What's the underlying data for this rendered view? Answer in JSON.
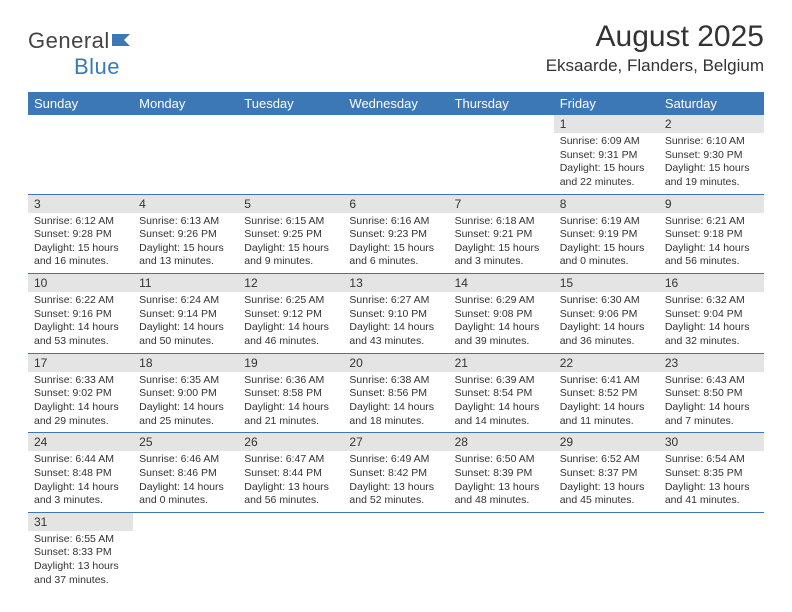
{
  "logo": {
    "text1": "General",
    "text2": "Blue"
  },
  "title": "August 2025",
  "location": "Eksaarde, Flanders, Belgium",
  "colors": {
    "header_bg": "#3b78b5",
    "header_text": "#ffffff",
    "daynum_bg": "#e4e4e4",
    "rule": "#3b78b5",
    "text": "#333333"
  },
  "daysOfWeek": [
    "Sunday",
    "Monday",
    "Tuesday",
    "Wednesday",
    "Thursday",
    "Friday",
    "Saturday"
  ],
  "firstDayOffset": 5,
  "days": [
    {
      "n": 1,
      "sr": "6:09 AM",
      "ss": "9:31 PM",
      "dl": "15 hours and 22 minutes."
    },
    {
      "n": 2,
      "sr": "6:10 AM",
      "ss": "9:30 PM",
      "dl": "15 hours and 19 minutes."
    },
    {
      "n": 3,
      "sr": "6:12 AM",
      "ss": "9:28 PM",
      "dl": "15 hours and 16 minutes."
    },
    {
      "n": 4,
      "sr": "6:13 AM",
      "ss": "9:26 PM",
      "dl": "15 hours and 13 minutes."
    },
    {
      "n": 5,
      "sr": "6:15 AM",
      "ss": "9:25 PM",
      "dl": "15 hours and 9 minutes."
    },
    {
      "n": 6,
      "sr": "6:16 AM",
      "ss": "9:23 PM",
      "dl": "15 hours and 6 minutes."
    },
    {
      "n": 7,
      "sr": "6:18 AM",
      "ss": "9:21 PM",
      "dl": "15 hours and 3 minutes."
    },
    {
      "n": 8,
      "sr": "6:19 AM",
      "ss": "9:19 PM",
      "dl": "15 hours and 0 minutes."
    },
    {
      "n": 9,
      "sr": "6:21 AM",
      "ss": "9:18 PM",
      "dl": "14 hours and 56 minutes."
    },
    {
      "n": 10,
      "sr": "6:22 AM",
      "ss": "9:16 PM",
      "dl": "14 hours and 53 minutes."
    },
    {
      "n": 11,
      "sr": "6:24 AM",
      "ss": "9:14 PM",
      "dl": "14 hours and 50 minutes."
    },
    {
      "n": 12,
      "sr": "6:25 AM",
      "ss": "9:12 PM",
      "dl": "14 hours and 46 minutes."
    },
    {
      "n": 13,
      "sr": "6:27 AM",
      "ss": "9:10 PM",
      "dl": "14 hours and 43 minutes."
    },
    {
      "n": 14,
      "sr": "6:29 AM",
      "ss": "9:08 PM",
      "dl": "14 hours and 39 minutes."
    },
    {
      "n": 15,
      "sr": "6:30 AM",
      "ss": "9:06 PM",
      "dl": "14 hours and 36 minutes."
    },
    {
      "n": 16,
      "sr": "6:32 AM",
      "ss": "9:04 PM",
      "dl": "14 hours and 32 minutes."
    },
    {
      "n": 17,
      "sr": "6:33 AM",
      "ss": "9:02 PM",
      "dl": "14 hours and 29 minutes."
    },
    {
      "n": 18,
      "sr": "6:35 AM",
      "ss": "9:00 PM",
      "dl": "14 hours and 25 minutes."
    },
    {
      "n": 19,
      "sr": "6:36 AM",
      "ss": "8:58 PM",
      "dl": "14 hours and 21 minutes."
    },
    {
      "n": 20,
      "sr": "6:38 AM",
      "ss": "8:56 PM",
      "dl": "14 hours and 18 minutes."
    },
    {
      "n": 21,
      "sr": "6:39 AM",
      "ss": "8:54 PM",
      "dl": "14 hours and 14 minutes."
    },
    {
      "n": 22,
      "sr": "6:41 AM",
      "ss": "8:52 PM",
      "dl": "14 hours and 11 minutes."
    },
    {
      "n": 23,
      "sr": "6:43 AM",
      "ss": "8:50 PM",
      "dl": "14 hours and 7 minutes."
    },
    {
      "n": 24,
      "sr": "6:44 AM",
      "ss": "8:48 PM",
      "dl": "14 hours and 3 minutes."
    },
    {
      "n": 25,
      "sr": "6:46 AM",
      "ss": "8:46 PM",
      "dl": "14 hours and 0 minutes."
    },
    {
      "n": 26,
      "sr": "6:47 AM",
      "ss": "8:44 PM",
      "dl": "13 hours and 56 minutes."
    },
    {
      "n": 27,
      "sr": "6:49 AM",
      "ss": "8:42 PM",
      "dl": "13 hours and 52 minutes."
    },
    {
      "n": 28,
      "sr": "6:50 AM",
      "ss": "8:39 PM",
      "dl": "13 hours and 48 minutes."
    },
    {
      "n": 29,
      "sr": "6:52 AM",
      "ss": "8:37 PM",
      "dl": "13 hours and 45 minutes."
    },
    {
      "n": 30,
      "sr": "6:54 AM",
      "ss": "8:35 PM",
      "dl": "13 hours and 41 minutes."
    },
    {
      "n": 31,
      "sr": "6:55 AM",
      "ss": "8:33 PM",
      "dl": "13 hours and 37 minutes."
    }
  ],
  "labels": {
    "sunrise": "Sunrise: ",
    "sunset": "Sunset: ",
    "daylight": "Daylight: "
  }
}
